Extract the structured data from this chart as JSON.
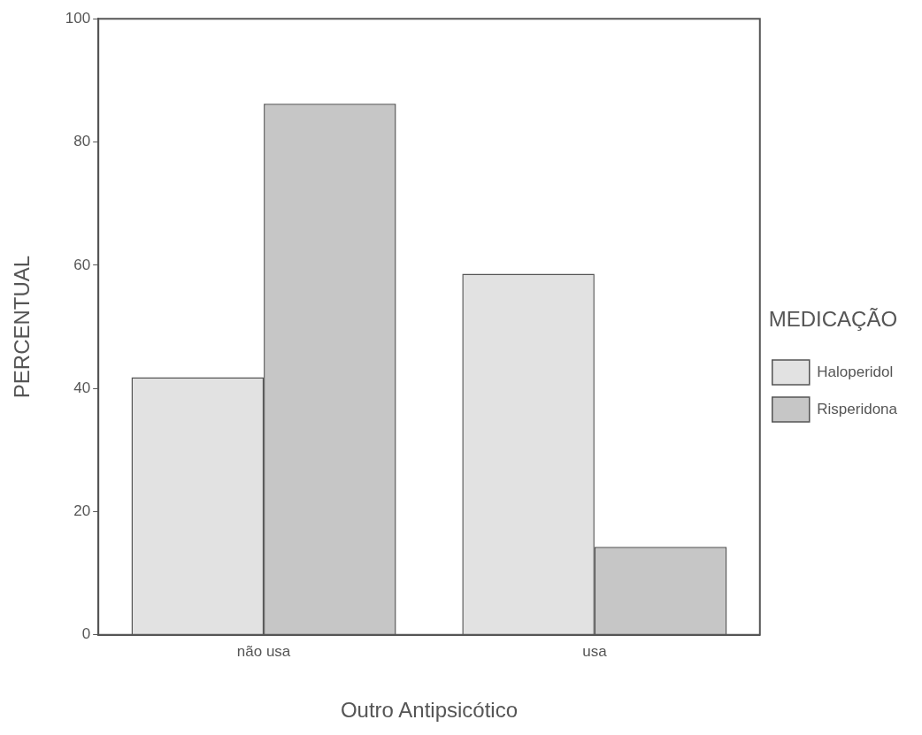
{
  "chart_data": {
    "type": "bar",
    "xlabel": "Outro Antipsicótico",
    "ylabel": "PERCENTUAL",
    "legend_title": "MEDICAÇÃO",
    "categories": [
      "não usa",
      "usa"
    ],
    "series": [
      {
        "name": "Haloperidol",
        "color": "#e2e2e2",
        "values": [
          41.8,
          58.6
        ]
      },
      {
        "name": "Risperidona",
        "color": "#c6c6c6",
        "values": [
          86.2,
          14.3
        ]
      }
    ],
    "ylim": [
      0,
      100
    ],
    "yticks": [
      0,
      20,
      40,
      60,
      80,
      100
    ],
    "grid": false,
    "legend": "right"
  }
}
